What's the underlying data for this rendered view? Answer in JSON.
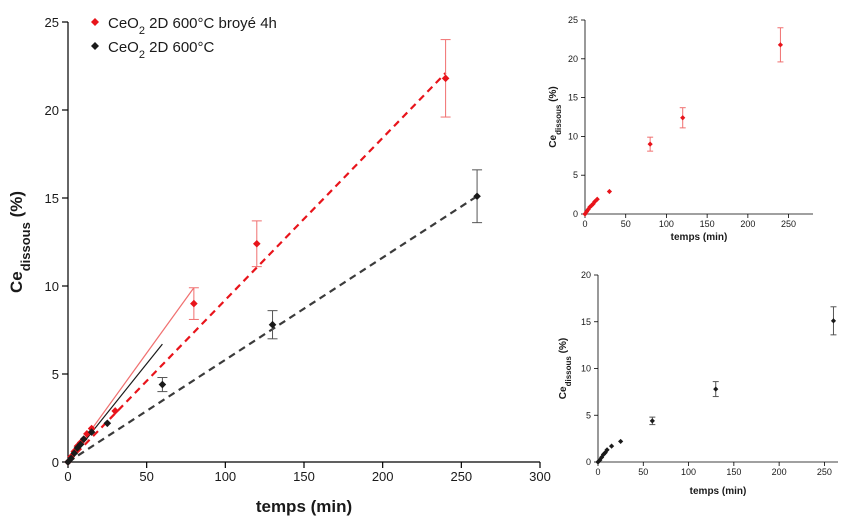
{
  "colors": {
    "red": "#e8141b",
    "black": "#1a1a1a",
    "fit_red": "#f07070"
  },
  "chart_data": [
    {
      "id": "main",
      "type": "scatter",
      "xlabel": "temps (min)",
      "ylabel": {
        "main": "Ce",
        "sub": "dissous",
        "suffix": " (%)"
      },
      "xlim": [
        0,
        300
      ],
      "ylim": [
        0,
        25
      ],
      "xticks": [
        0,
        50,
        100,
        150,
        200,
        250,
        300
      ],
      "yticks": [
        0,
        5,
        10,
        15,
        20,
        25
      ],
      "grid": false,
      "legend_position": "top-left",
      "series": [
        {
          "name": "CeO2 2D 600°C broyé 4h",
          "legend": {
            "pre": "CeO",
            "sub": "2",
            "post": " 2D 600°C broyé 4h"
          },
          "color": "#e8141b",
          "x": [
            0,
            2,
            4,
            6,
            8,
            10,
            12,
            15,
            30,
            80,
            120,
            240
          ],
          "y": [
            0,
            0.3,
            0.6,
            0.9,
            1.1,
            1.3,
            1.6,
            1.9,
            2.9,
            9.0,
            12.4,
            21.8
          ],
          "err": [
            0,
            0,
            0,
            0,
            0,
            0,
            0,
            0,
            0,
            0.9,
            1.3,
            2.2
          ],
          "dashed_fit": [
            [
              0,
              0
            ],
            [
              240,
              22.1
            ]
          ],
          "initial_fit": [
            [
              0,
              0
            ],
            [
              80,
              9.9
            ]
          ]
        },
        {
          "name": "CeO2 2D 600°C",
          "legend": {
            "pre": "CeO",
            "sub": "2",
            "post": " 2D 600°C"
          },
          "color": "#1a1a1a",
          "x": [
            0,
            2,
            4,
            6,
            8,
            10,
            15,
            25,
            60,
            130,
            260
          ],
          "y": [
            0,
            0.2,
            0.5,
            0.8,
            1.0,
            1.3,
            1.7,
            2.2,
            4.4,
            7.8,
            15.1
          ],
          "err": [
            0,
            0,
            0,
            0,
            0,
            0,
            0,
            0,
            0.4,
            0.8,
            1.5
          ],
          "dashed_fit": [
            [
              0,
              0
            ],
            [
              260,
              15.1
            ]
          ],
          "initial_fit": [
            [
              0,
              0
            ],
            [
              60,
              6.7
            ]
          ]
        }
      ]
    },
    {
      "id": "inset-top",
      "type": "scatter",
      "xlabel": "temps (min)",
      "ylabel": {
        "main": "Ce",
        "sub": "dissous",
        "suffix": " (%)"
      },
      "xlim": [
        0,
        280
      ],
      "ylim": [
        0,
        25
      ],
      "xticks": [
        0,
        50,
        100,
        150,
        200,
        250
      ],
      "yticks": [
        0,
        5,
        10,
        15,
        20,
        25
      ],
      "grid": false,
      "series": [
        {
          "color": "#e8141b",
          "x": [
            0,
            2,
            4,
            6,
            8,
            10,
            12,
            15,
            30,
            80,
            120,
            240
          ],
          "y": [
            0,
            0.3,
            0.6,
            0.9,
            1.1,
            1.3,
            1.6,
            1.9,
            2.9,
            9.0,
            12.4,
            21.8
          ],
          "err": [
            0,
            0,
            0,
            0,
            0,
            0,
            0,
            0,
            0,
            0.9,
            1.3,
            2.2
          ]
        }
      ]
    },
    {
      "id": "inset-bottom",
      "type": "scatter",
      "xlabel": "temps (min)",
      "ylabel": {
        "main": "Ce",
        "sub": "dissous",
        "suffix": " (%)"
      },
      "xlim": [
        0,
        265
      ],
      "ylim": [
        0,
        20
      ],
      "xticks": [
        0,
        50,
        100,
        150,
        200,
        250
      ],
      "yticks": [
        0,
        5,
        10,
        15,
        20
      ],
      "grid": false,
      "series": [
        {
          "color": "#1a1a1a",
          "x": [
            0,
            2,
            4,
            6,
            8,
            10,
            15,
            25,
            60,
            130,
            260
          ],
          "y": [
            0,
            0.2,
            0.5,
            0.8,
            1.0,
            1.3,
            1.7,
            2.2,
            4.4,
            7.8,
            15.1
          ],
          "err": [
            0,
            0,
            0,
            0,
            0,
            0,
            0,
            0,
            0.4,
            0.8,
            1.5
          ]
        }
      ]
    }
  ]
}
